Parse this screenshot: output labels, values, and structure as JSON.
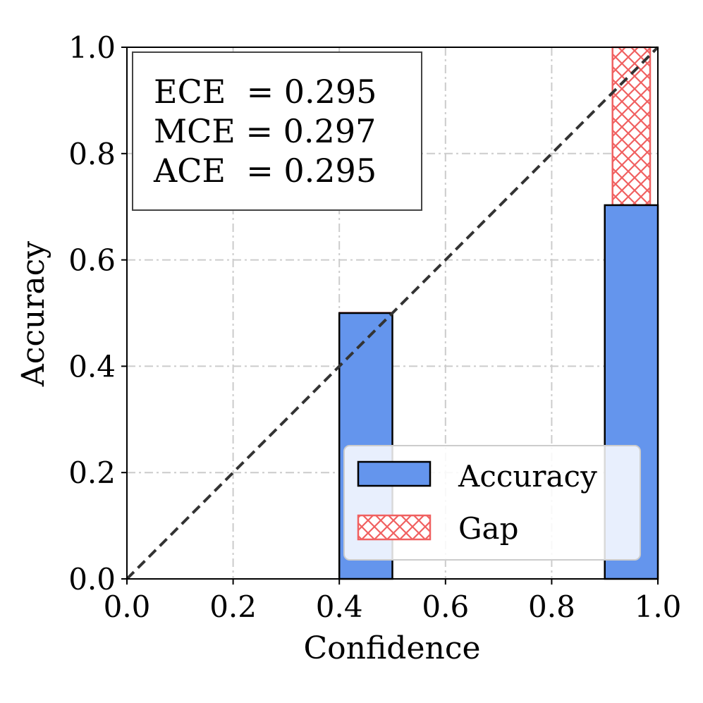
{
  "chart_data": {
    "type": "bar",
    "title": "",
    "xlabel": "Confidence",
    "ylabel": "Accuracy",
    "xlim": [
      0.0,
      1.0
    ],
    "ylim": [
      0.0,
      1.0
    ],
    "grid": true,
    "xticks": [
      "0.0",
      "0.2",
      "0.4",
      "0.6",
      "0.8",
      "1.0"
    ],
    "yticks": [
      "0.0",
      "0.2",
      "0.4",
      "0.6",
      "0.8",
      "1.0"
    ],
    "bin_width": 0.1,
    "bins": [
      {
        "bin_start": 0.4,
        "bin_end": 0.5,
        "accuracy": 0.5,
        "confidence": 0.5
      },
      {
        "bin_start": 0.9,
        "bin_end": 1.0,
        "accuracy": 0.703,
        "confidence": 1.0
      }
    ],
    "series": [
      {
        "name": "Accuracy",
        "color": "#6495ED"
      },
      {
        "name": "Gap",
        "color": "#F06060",
        "pattern": "crosshatch"
      }
    ],
    "reference_line": {
      "style": "dashed",
      "from": [
        0,
        0
      ],
      "to": [
        1,
        1
      ],
      "color": "#333333"
    },
    "metrics": [
      "ECE  = 0.295",
      "MCE = 0.297",
      "ACE  = 0.295"
    ],
    "legend_position": "lower-right"
  }
}
